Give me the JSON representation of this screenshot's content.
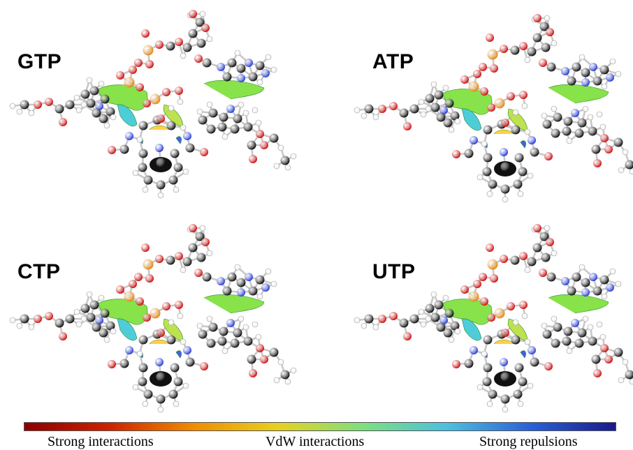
{
  "panels": [
    {
      "label": "GTP"
    },
    {
      "label": "ATP"
    },
    {
      "label": "CTP"
    },
    {
      "label": "UTP"
    }
  ],
  "colorbar": {
    "gradient": [
      "#8b0000",
      "#cc2200",
      "#f08c00",
      "#e8d020",
      "#7ee07e",
      "#4cc0e0",
      "#2a60d8",
      "#1a1a8a"
    ],
    "labels": {
      "left": "Strong interactions",
      "middle": "VdW interactions",
      "right": "Strong repulsions"
    }
  },
  "atom_colors": {
    "carbon": "#111111",
    "oxygen": "#cc1111",
    "nitrogen": "#2a3fd8",
    "hydrogen": "#f2f2f2",
    "phosphorus": "#e08a1a",
    "surface": "#7ee03a"
  }
}
